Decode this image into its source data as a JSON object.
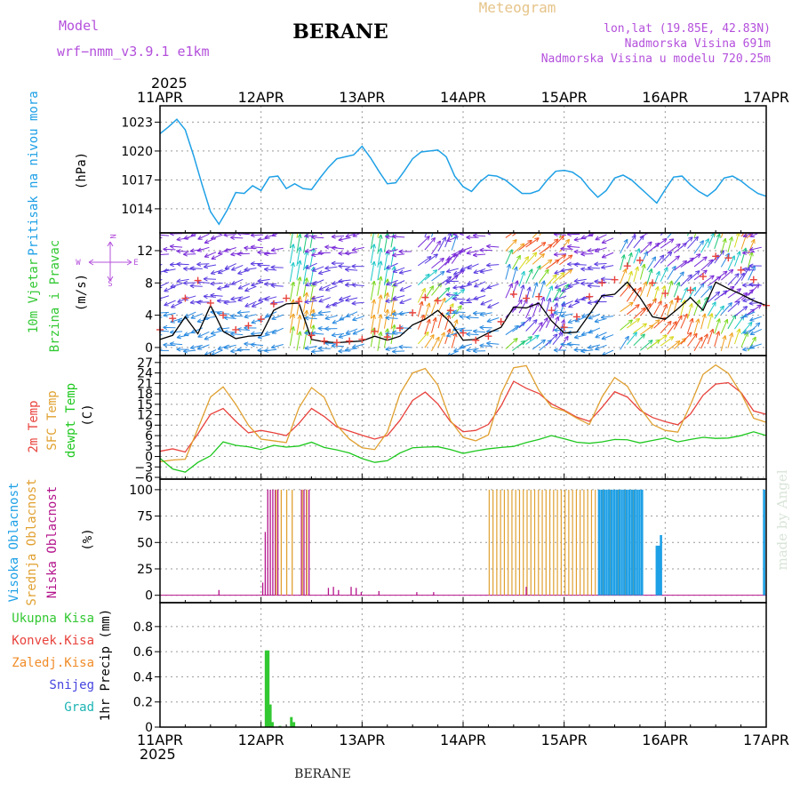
{
  "header": {
    "model_label": "Model",
    "model_name": "wrf−nmm_v3.9.1  e1km",
    "station": "BERANE",
    "product": "Meteogram",
    "coords": "lon,lat (19.85E, 42.83N)",
    "elevation": "Nadmorska Visina 691m",
    "model_elevation": "Nadmorska Visina u modelu 720.25m",
    "watermark": "made by Angel",
    "footer_station": "BERANE"
  },
  "time_axis": {
    "year": "2025",
    "ticks": [
      "11APR",
      "12APR",
      "13APR",
      "14APR",
      "15APR",
      "16APR",
      "17APR"
    ],
    "range_hours": [
      0,
      144
    ]
  },
  "colors": {
    "pressure": "#1ea0e6",
    "temp2m": "#e8423c",
    "sfc": "#e0a030",
    "dew": "#1ec81e",
    "high_cloud": "#1ea0e6",
    "mid_cloud": "#e0a030",
    "low_cloud": "#b4148c",
    "precip": "#32c832",
    "conv": "#e8423c",
    "grau": "#1eb4b4",
    "snow": "#4646e0",
    "frz": "#f08c28",
    "wind_label": "#32c832",
    "compass": "#b450dc",
    "watermark": "#d8e4d8"
  },
  "chart_data": [
    {
      "type": "line",
      "panel": "pressure",
      "ylabel_lines": [
        "Pritisak na nivou mora"
      ],
      "unit": "(hPa)",
      "yticks": [
        1014,
        1017,
        1020,
        1023
      ],
      "ylim": [
        1011.5,
        1024.7
      ],
      "grid": true,
      "series": [
        {
          "x": [
            0,
            2,
            4,
            6,
            8,
            10,
            12,
            14,
            16,
            18,
            20,
            22,
            24,
            26,
            28,
            30,
            32,
            34,
            36,
            38,
            40,
            42,
            44,
            46,
            48,
            50,
            52,
            54,
            56,
            58,
            60,
            62,
            64,
            66,
            68,
            70,
            72,
            74,
            76,
            78,
            80,
            82,
            84,
            86,
            88,
            90,
            92,
            94,
            96,
            98,
            100,
            102,
            104,
            106,
            108,
            110,
            112,
            114,
            116,
            118,
            120,
            122,
            124,
            126,
            128,
            130,
            132,
            134,
            136,
            138,
            140,
            142,
            144
          ],
          "y": [
            1021.8,
            1022.5,
            1023.3,
            1022.2,
            1019.5,
            1016.5,
            1013.7,
            1012.4,
            1013.9,
            1015.7,
            1015.6,
            1016.4,
            1015.9,
            1017.3,
            1017.4,
            1016.1,
            1016.6,
            1016.1,
            1016.0,
            1017.2,
            1018.3,
            1019.2,
            1019.4,
            1019.6,
            1020.5,
            1019.3,
            1017.9,
            1016.6,
            1016.7,
            1017.9,
            1019.2,
            1019.9,
            1020.0,
            1020.1,
            1019.4,
            1017.4,
            1016.3,
            1015.8,
            1016.8,
            1017.5,
            1017.4,
            1017.0,
            1016.3,
            1015.6,
            1015.6,
            1015.9,
            1017.0,
            1017.9,
            1018.0,
            1017.8,
            1017.2,
            1016.1,
            1015.2,
            1015.9,
            1017.2,
            1017.5,
            1017.0,
            1016.2,
            1015.4,
            1014.6,
            1016.0,
            1017.3,
            1017.4,
            1016.5,
            1015.8,
            1015.3,
            1016.0,
            1017.2,
            1017.4,
            1016.9,
            1016.2,
            1015.6,
            1015.3
          ]
        }
      ]
    },
    {
      "type": "line",
      "panel": "wind",
      "ylabel_lines": [
        "10m Vjetar",
        "Brzina i Pravac"
      ],
      "unit": "(m/s)",
      "compass": {
        "n": "N",
        "e": "E",
        "s": "S",
        "w": "W"
      },
      "yticks": [
        0,
        4,
        8,
        12
      ],
      "ylim": [
        -1,
        14.2
      ],
      "grid": true,
      "series": [
        {
          "name": "mean speed",
          "x": [
            0,
            3,
            6,
            9,
            12,
            15,
            18,
            21,
            24,
            27,
            30,
            33,
            36,
            39,
            42,
            45,
            48,
            51,
            54,
            57,
            60,
            63,
            66,
            69,
            72,
            75,
            78,
            81,
            84,
            87,
            90,
            93,
            96,
            99,
            102,
            105,
            108,
            111,
            114,
            117,
            120,
            123,
            126,
            129,
            132,
            135,
            138,
            141,
            144
          ],
          "y": [
            1,
            1.5,
            3.8,
            1.7,
            5.2,
            2,
            1.1,
            1.4,
            1.5,
            4.6,
            5.4,
            5.5,
            1,
            0.7,
            0.6,
            0.7,
            0.8,
            1.4,
            0.9,
            1.4,
            2.8,
            3.5,
            4.6,
            3.1,
            0.9,
            1,
            1.8,
            2.5,
            5,
            4.9,
            5.5,
            3.3,
            1.8,
            1.9,
            4.1,
            6.4,
            6.6,
            8.1,
            6.2,
            3.8,
            3.5,
            4.8,
            6.2,
            4.6,
            8.1,
            7.3,
            6.6,
            5.8,
            5.2
          ]
        },
        {
          "name": "gust",
          "x": [
            0,
            3,
            6,
            9,
            12,
            15,
            18,
            21,
            24,
            27,
            30,
            33,
            36,
            39,
            42,
            45,
            48,
            51,
            54,
            57,
            60,
            63,
            66,
            69,
            72,
            75,
            78,
            81,
            84,
            87,
            90,
            93,
            96,
            99,
            102,
            105,
            108,
            111,
            114,
            117,
            120,
            123,
            126,
            129,
            132,
            135,
            138,
            141,
            144
          ],
          "y": [
            2.2,
            3.6,
            6.1,
            8.3,
            5.5,
            4,
            2.2,
            2.7,
            3.5,
            5.4,
            6.1,
            5.7,
            1.5,
            0.8,
            0.6,
            0.8,
            1,
            2,
            1.3,
            2.4,
            4.3,
            6.2,
            5.8,
            4.6,
            1.8,
            0.9,
            1.4,
            3.2,
            6.6,
            6.1,
            6.3,
            4.6,
            2.5,
            3.8,
            6.3,
            8,
            8.4,
            10.1,
            10.8,
            8,
            6.7,
            6,
            7.1,
            8.8,
            11.3,
            11.1,
            9.6,
            8.4,
            5.2
          ]
        }
      ]
    },
    {
      "type": "line",
      "panel": "temperature",
      "ylabel_lines": [
        "2m Temp",
        "SFC Temp",
        "dewpt Temp"
      ],
      "unit": "(C)",
      "yticks": [
        -6,
        -3,
        0,
        3,
        6,
        9,
        12,
        15,
        18,
        21,
        24,
        27
      ],
      "ylim": [
        -6.5,
        29
      ],
      "grid": true,
      "series": [
        {
          "name": "2m Temp",
          "x": [
            0,
            3,
            6,
            9,
            12,
            15,
            18,
            21,
            24,
            27,
            30,
            33,
            36,
            39,
            42,
            45,
            48,
            51,
            54,
            57,
            60,
            63,
            66,
            69,
            72,
            75,
            78,
            81,
            84,
            87,
            90,
            93,
            96,
            99,
            102,
            105,
            108,
            111,
            114,
            117,
            120,
            123,
            126,
            129,
            132,
            135,
            138,
            141,
            144
          ],
          "y": [
            1.5,
            2.2,
            1.3,
            6.5,
            12.1,
            13.8,
            10.1,
            6.8,
            7.5,
            6.8,
            6,
            9.5,
            13.8,
            11.5,
            8.5,
            7.3,
            6.1,
            5,
            6,
            10.4,
            16.1,
            18.5,
            15.1,
            10,
            7.1,
            7.5,
            9.2,
            14.5,
            21.6,
            19.6,
            18.1,
            15.1,
            13.3,
            11.3,
            10.1,
            14.1,
            18.6,
            17.1,
            13.3,
            11.2,
            10,
            9.1,
            12.2,
            17.6,
            20.8,
            21.2,
            18.4,
            13.1,
            12.1
          ]
        },
        {
          "name": "SFC Temp",
          "x": [
            0,
            3,
            6,
            9,
            12,
            15,
            18,
            21,
            24,
            27,
            30,
            33,
            36,
            39,
            42,
            45,
            48,
            51,
            54,
            57,
            60,
            63,
            66,
            69,
            72,
            75,
            78,
            81,
            84,
            87,
            90,
            93,
            96,
            99,
            102,
            105,
            108,
            111,
            114,
            117,
            120,
            123,
            126,
            129,
            132,
            135,
            138,
            141,
            144
          ],
          "y": [
            -1.5,
            -1,
            -0.8,
            8,
            17.1,
            20,
            15,
            9,
            5,
            4.5,
            4,
            14,
            19.8,
            17,
            9,
            5,
            2.5,
            2,
            7,
            18,
            24,
            25.3,
            20.5,
            10.3,
            5.5,
            4.5,
            6.2,
            18,
            25.5,
            26.1,
            19,
            14.2,
            13.1,
            11,
            9.2,
            17.1,
            22.7,
            20.2,
            14,
            9.2,
            7.5,
            7,
            14.8,
            23.6,
            26.3,
            23.9,
            18.2,
            11,
            9.8
          ]
        },
        {
          "name": "dewpt Temp",
          "x": [
            0,
            3,
            6,
            9,
            12,
            15,
            18,
            21,
            24,
            27,
            30,
            33,
            36,
            39,
            42,
            45,
            48,
            51,
            54,
            57,
            60,
            63,
            66,
            69,
            72,
            75,
            78,
            81,
            84,
            87,
            90,
            93,
            96,
            99,
            102,
            105,
            108,
            111,
            114,
            117,
            120,
            123,
            126,
            129,
            132,
            135,
            138,
            141,
            144
          ],
          "y": [
            -0.5,
            -3.6,
            -4.5,
            -1.7,
            0.2,
            4.2,
            3.2,
            2.8,
            2,
            3.2,
            2.7,
            3,
            4.1,
            2.6,
            1.9,
            1,
            -0.6,
            -1.7,
            -1.2,
            1,
            2.5,
            2.7,
            2.8,
            2,
            0.9,
            1.6,
            2.2,
            2.6,
            2.9,
            4,
            4.9,
            6,
            5.1,
            4.1,
            3.8,
            4.2,
            4.9,
            4.8,
            3.9,
            4.6,
            5.3,
            4.2,
            4.9,
            5.5,
            5.2,
            5.3,
            6,
            7.1,
            6
          ]
        }
      ]
    },
    {
      "type": "bar",
      "panel": "cloud",
      "ylabel_lines": [
        "Visoka Oblacnost",
        "Srednja Oblacnost",
        "Niska Oblacnost"
      ],
      "unit": "(%)",
      "yticks": [
        0,
        25,
        50,
        75,
        100
      ],
      "ylim": [
        -7,
        110
      ],
      "grid": true,
      "series": [
        {
          "name": "Niska Oblacnost",
          "hours": [
            14,
            24.4,
            25,
            25.6,
            26.2,
            26.8,
            27.4,
            28,
            33.6,
            34.2,
            34.8,
            35.4,
            40,
            41.2,
            42.4,
            45.4,
            46.6,
            47.8,
            52,
            61,
            65,
            87
          ],
          "values": [
            5,
            12,
            60,
            100,
            100,
            100,
            100,
            100,
            100,
            100,
            100,
            100,
            7,
            8,
            5,
            8,
            7,
            3,
            4,
            3,
            3,
            8
          ]
        },
        {
          "name": "Srednja Oblacnost",
          "hours": [
            27.6,
            28.8,
            30.1,
            31.4,
            33.8,
            34.9
          ],
          "values": [
            100,
            100,
            100,
            100,
            100,
            100
          ]
        },
        {
          "name": "Visoka Oblacnost",
          "hours": [
            104.3,
            104.9,
            105.5,
            106.1,
            106.7,
            107.3,
            107.9,
            108.5,
            109.1,
            109.7,
            110.3,
            110.9,
            111.5,
            112.1,
            112.7,
            113.3,
            113.9,
            114.5,
            118,
            118.5,
            119,
            143.5
          ],
          "values": [
            100,
            100,
            100,
            100,
            100,
            100,
            100,
            100,
            100,
            100,
            100,
            100,
            100,
            100,
            100,
            100,
            100,
            100,
            47,
            47,
            57,
            100
          ]
        }
      ]
    },
    {
      "type": "bar",
      "panel": "precipitation",
      "unit": "1hr Precip (mm)",
      "legend": [
        "Ukupna Kisa",
        "Konvek.Kisa",
        "Zaledj.Kisa",
        "Snijeg",
        "Grad"
      ],
      "yticks": [
        0,
        0.2,
        0.4,
        0.6,
        0.8
      ],
      "ylim": [
        0,
        0.99
      ],
      "grid": true,
      "series": [
        {
          "name": "Ukupna Kisa",
          "hours": [
            25.2,
            25.7,
            26.2,
            26.7,
            28.5,
            31.2,
            31.8
          ],
          "values": [
            0.61,
            0.61,
            0.18,
            0.04,
            0.01,
            0.08,
            0.04
          ]
        }
      ]
    }
  ]
}
